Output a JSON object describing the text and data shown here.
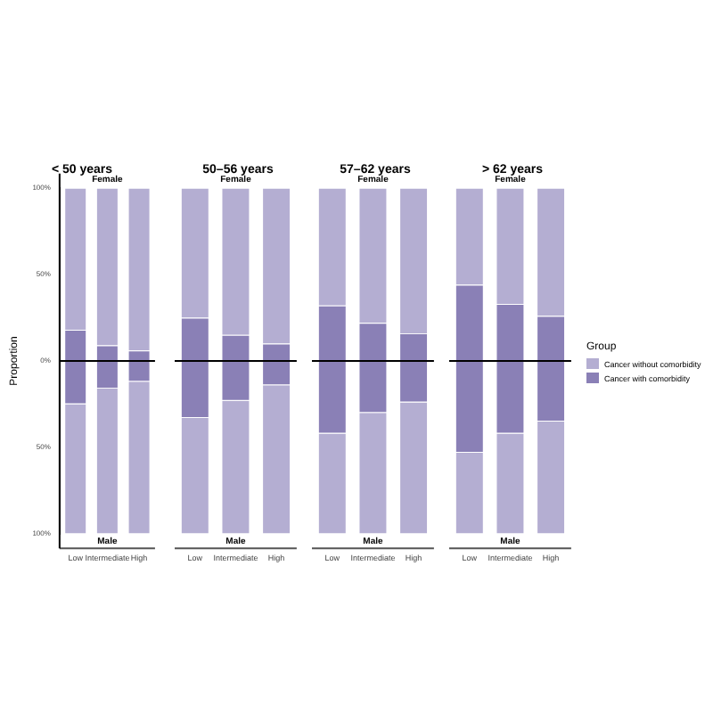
{
  "chart_data": [
    {
      "type": "bar",
      "title": "< 50 years",
      "ylabel": "Proportion",
      "categories": [
        "Low",
        "Intermediate",
        "High"
      ],
      "stacked": true,
      "ylim": [
        -100,
        100
      ],
      "yticks": [
        {
          "value": 100,
          "label": "100%"
        },
        {
          "value": 50,
          "label": "50%"
        },
        {
          "value": 0,
          "label": "0%"
        },
        {
          "value": -50,
          "label": "50%"
        },
        {
          "value": -100,
          "label": "100%"
        }
      ],
      "grid": false,
      "annotations": [
        "Female",
        "Male"
      ],
      "ref_lines": [
        {
          "axis": "y",
          "value": 0,
          "color": "#000000"
        }
      ],
      "series": [
        {
          "color": "#8a80b6",
          "values": [
            18,
            9,
            6
          ]
        },
        {
          "color": "#b4aed2",
          "values": [
            82,
            91,
            94
          ]
        },
        {
          "color": "#8a80b6",
          "values": [
            -25,
            -16,
            -12
          ]
        },
        {
          "color": "#b4aed2",
          "values": [
            -75,
            -84,
            -88
          ]
        }
      ]
    },
    {
      "type": "bar",
      "title": "50–56 years",
      "categories": [
        "Low",
        "Intermediate",
        "High"
      ],
      "stacked": true,
      "ylim": [
        -100,
        100
      ],
      "tick_labels": "x",
      "grid": false,
      "annotations": [
        "Female",
        "Male"
      ],
      "ref_lines": [
        {
          "axis": "y",
          "value": 0,
          "color": "#000000"
        }
      ],
      "series": [
        {
          "color": "#8a80b6",
          "values": [
            25,
            15,
            10
          ]
        },
        {
          "color": "#b4aed2",
          "values": [
            75,
            85,
            90
          ]
        },
        {
          "color": "#8a80b6",
          "values": [
            -33,
            -23,
            -14
          ]
        },
        {
          "color": "#b4aed2",
          "values": [
            -67,
            -77,
            -86
          ]
        }
      ]
    },
    {
      "type": "bar",
      "title": "57–62 years",
      "categories": [
        "Low",
        "Intermediate",
        "High"
      ],
      "stacked": true,
      "ylim": [
        -100,
        100
      ],
      "tick_labels": "x",
      "grid": false,
      "annotations": [
        "Female",
        "Male"
      ],
      "ref_lines": [
        {
          "axis": "y",
          "value": 0,
          "color": "#000000"
        }
      ],
      "series": [
        {
          "color": "#8a80b6",
          "values": [
            32,
            22,
            16
          ]
        },
        {
          "color": "#b4aed2",
          "values": [
            68,
            78,
            84
          ]
        },
        {
          "color": "#8a80b6",
          "values": [
            -42,
            -30,
            -24
          ]
        },
        {
          "color": "#b4aed2",
          "values": [
            -58,
            -70,
            -76
          ]
        }
      ]
    },
    {
      "type": "bar",
      "title": "> 62 years",
      "categories": [
        "Low",
        "Intermediate",
        "High"
      ],
      "stacked": true,
      "ylim": [
        -100,
        100
      ],
      "tick_labels": "x",
      "grid": false,
      "legend": "right",
      "legend_title": "Group",
      "annotations": [
        "Female",
        "Male"
      ],
      "ref_lines": [
        {
          "axis": "y",
          "value": 0,
          "color": "#000000"
        }
      ],
      "series": [
        {
          "name": "Cancer with comorbidity",
          "color": "#8a80b6",
          "values": [
            44,
            33,
            26
          ]
        },
        {
          "name": "Cancer without comorbidity",
          "color": "#b4aed2",
          "values": [
            56,
            67,
            74
          ]
        },
        {
          "color": "#8a80b6",
          "values": [
            -53,
            -42,
            -35
          ]
        },
        {
          "color": "#b4aed2",
          "values": [
            -47,
            -58,
            -65
          ]
        }
      ]
    }
  ]
}
